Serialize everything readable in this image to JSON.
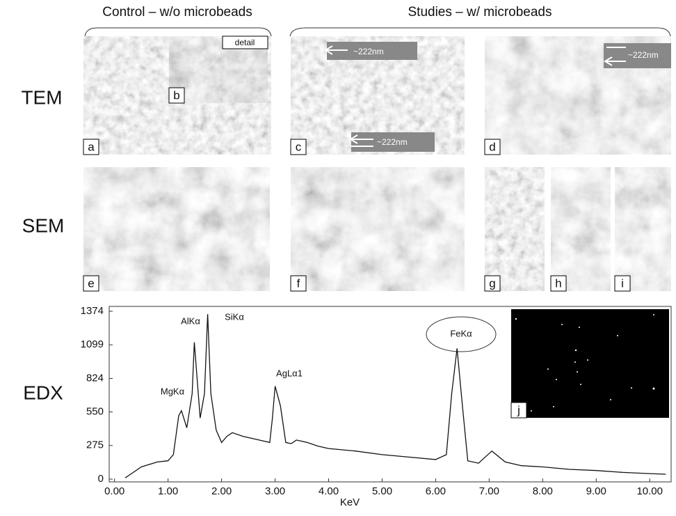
{
  "header": {
    "left": "Control – w/o microbeads",
    "right": "Studies – w/ microbeads"
  },
  "rows": [
    "TEM",
    "SEM",
    "EDX"
  ],
  "panels": [
    "a",
    "b",
    "c",
    "d",
    "e",
    "f",
    "g",
    "h",
    "i",
    "j"
  ],
  "detail": "detail",
  "scale_notes": [
    "~222nm",
    "~222nm",
    "~222nm"
  ],
  "chart_data": {
    "type": "line",
    "xlabel": "KeV",
    "peaks": [
      "MgKα",
      "AlKα",
      "SiKα",
      "AgLα1",
      "FeKα"
    ],
    "x": [
      0.2,
      0.3,
      0.5,
      0.8,
      1.0,
      1.1,
      1.2,
      1.25,
      1.35,
      1.45,
      1.49,
      1.6,
      1.68,
      1.74,
      1.8,
      1.9,
      2.0,
      2.1,
      2.2,
      2.4,
      2.6,
      2.8,
      2.9,
      2.95,
      3.0,
      3.1,
      3.2,
      3.3,
      3.4,
      3.6,
      3.8,
      4.0,
      4.5,
      5.0,
      5.5,
      6.0,
      6.2,
      6.3,
      6.4,
      6.5,
      6.6,
      6.8,
      7.05,
      7.3,
      7.6,
      8.0,
      8.5,
      9.0,
      9.5,
      10.0,
      10.3
    ],
    "values": [
      10,
      40,
      100,
      140,
      150,
      200,
      520,
      560,
      420,
      700,
      1120,
      500,
      700,
      1350,
      700,
      400,
      300,
      350,
      380,
      350,
      330,
      310,
      300,
      500,
      760,
      600,
      300,
      290,
      320,
      300,
      270,
      250,
      230,
      200,
      180,
      160,
      200,
      700,
      1070,
      600,
      150,
      130,
      230,
      140,
      110,
      100,
      80,
      70,
      55,
      45,
      40
    ],
    "color": "#111111",
    "xlim": [
      -0.1,
      10.4
    ],
    "ylim": [
      0,
      1374
    ],
    "xticks": [
      {
        "value": 0,
        "label": "0.00"
      },
      {
        "value": 1,
        "label": "1.00"
      },
      {
        "value": 2,
        "label": "2.00"
      },
      {
        "value": 3,
        "label": "3.00"
      },
      {
        "value": 4,
        "label": "4.00"
      },
      {
        "value": 5,
        "label": "5.00"
      },
      {
        "value": 6,
        "label": "6.00"
      },
      {
        "value": 7,
        "label": "7.00"
      },
      {
        "value": 8,
        "label": "8.00"
      },
      {
        "value": 9,
        "label": "9.00"
      },
      {
        "value": 10,
        "label": "10.00"
      }
    ],
    "yticks": [
      0,
      275,
      550,
      824,
      1099,
      1374
    ]
  }
}
